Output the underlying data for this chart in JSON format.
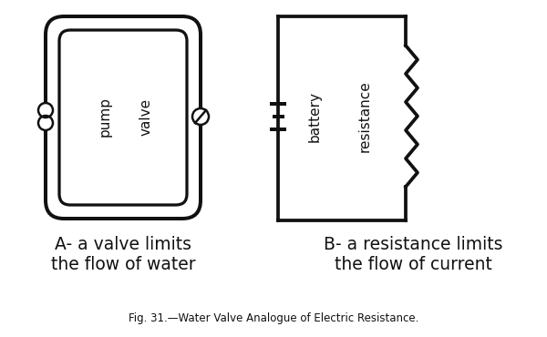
{
  "bg_color": "#ffffff",
  "line_color": "#111111",
  "fig_caption": "Fig. 31.—Water Valve Analogue of Electric Resistance.",
  "label_A_line1": "A- a valve limits",
  "label_A_line2": "the flow of water",
  "label_B_line1": "B- a resistance limits",
  "label_B_line2": "the flow of current",
  "label_pump": "pump",
  "label_valve": "valve",
  "label_battery": "battery",
  "label_resistance": "resistance",
  "figsize": [
    6.0,
    3.7
  ],
  "dpi": 100
}
